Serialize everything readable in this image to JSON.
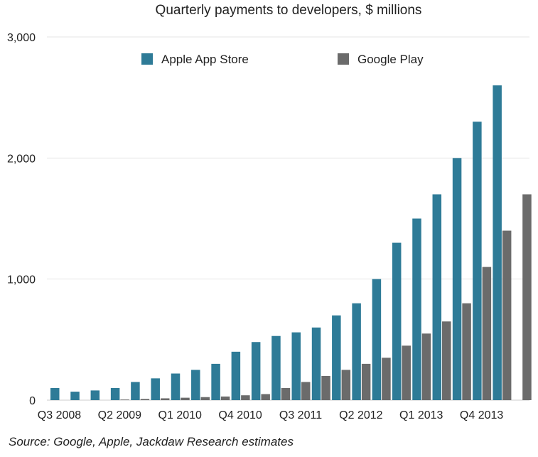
{
  "chart_data": {
    "type": "bar",
    "title": "Quarterly payments to developers, $ millions",
    "xlabel": "",
    "ylabel": "",
    "ylim": [
      0,
      3000
    ],
    "yticks": [
      0,
      1000,
      2000,
      3000
    ],
    "ytick_labels": [
      "0",
      "1,000",
      "2,000",
      "3,000"
    ],
    "categories": [
      "Q3 2008",
      "Q4 2008",
      "Q1 2009",
      "Q2 2009",
      "Q3 2009",
      "Q4 2009",
      "Q1 2010",
      "Q2 2010",
      "Q3 2010",
      "Q4 2010",
      "Q1 2011",
      "Q2 2011",
      "Q3 2011",
      "Q4 2011",
      "Q1 2012",
      "Q2 2012",
      "Q3 2012",
      "Q4 2012",
      "Q1 2013",
      "Q2 2013",
      "Q3 2013",
      "Q4 2013",
      "Q1 2014",
      "Q2 2014"
    ],
    "xtick_labels": [
      "Q3 2008",
      "",
      "",
      "Q2 2009",
      "",
      "",
      "Q1 2010",
      "",
      "",
      "Q4 2010",
      "",
      "",
      "Q3 2011",
      "",
      "",
      "Q2 2012",
      "",
      "",
      "Q1 2013",
      "",
      "",
      "Q4 2013",
      "",
      ""
    ],
    "series": [
      {
        "name": "Apple App Store",
        "color": "#2e7b97",
        "values": [
          100,
          70,
          80,
          100,
          150,
          180,
          220,
          250,
          300,
          400,
          480,
          530,
          560,
          600,
          700,
          800,
          1000,
          1300,
          1500,
          1700,
          2000,
          2300,
          2600,
          null
        ]
      },
      {
        "name": "Google Play",
        "color": "#6b6b6b",
        "values": [
          0,
          0,
          0,
          5,
          10,
          15,
          20,
          25,
          30,
          40,
          50,
          100,
          150,
          200,
          250,
          300,
          350,
          450,
          550,
          650,
          800,
          1100,
          1400,
          1700
        ]
      }
    ],
    "legend_position": "top"
  },
  "source": "Source: Google, Apple, Jackdaw Research estimates"
}
